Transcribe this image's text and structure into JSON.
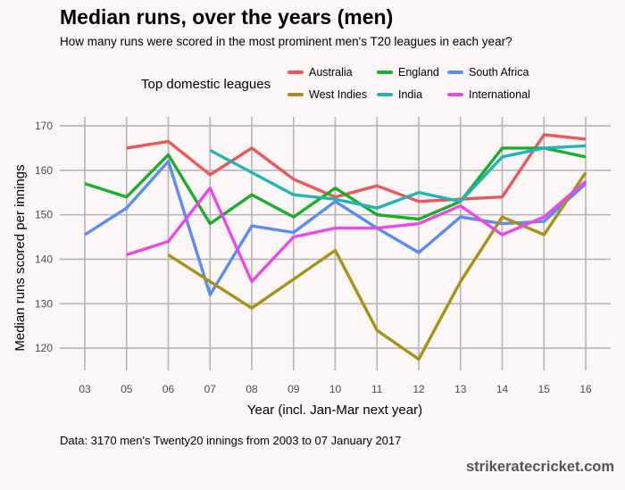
{
  "title": "Median runs, over the years (men)",
  "subtitle": "How many runs were scored in the most prominent men's T20 leagues in each year?",
  "caption": "Data: 3170 men's Twenty20 innings from 2003 to 07 January 2017",
  "brand": "strikeratecricket.com",
  "chart_data": {
    "type": "line",
    "title": "Median runs, over the years (men)",
    "xlabel": "Year (incl. Jan-Mar next year)",
    "ylabel": "Median runs scored per innings",
    "x": [
      "03",
      "05",
      "06",
      "07",
      "08",
      "09",
      "10",
      "11",
      "12",
      "13",
      "14",
      "15",
      "16"
    ],
    "ylim": [
      115,
      172
    ],
    "yticks": [
      120,
      130,
      140,
      150,
      160,
      170
    ],
    "grid": true,
    "legend": {
      "title": "Top domestic leagues",
      "position": "top"
    },
    "series": [
      {
        "name": "Australia",
        "color": "#e8585c",
        "values": [
          null,
          165,
          166.5,
          159,
          165,
          158,
          154,
          156.5,
          153,
          153.5,
          154,
          168,
          167
        ]
      },
      {
        "name": "England",
        "color": "#1cad2e",
        "values": [
          157,
          154,
          163.5,
          148,
          154.5,
          149.5,
          156,
          150,
          149,
          153,
          165,
          165,
          163
        ]
      },
      {
        "name": "South Africa",
        "color": "#5b8cf2",
        "values": [
          145.5,
          151.5,
          162,
          132,
          147.5,
          146,
          153,
          147,
          141.5,
          149.5,
          148,
          148.5,
          157
        ]
      },
      {
        "name": "West Indies",
        "color": "#a69216",
        "values": [
          null,
          null,
          141,
          135,
          129,
          135.5,
          142,
          124,
          117.5,
          135,
          149.5,
          145.5,
          159.5
        ]
      },
      {
        "name": "India",
        "color": "#22b5b5",
        "values": [
          null,
          null,
          null,
          164.5,
          159.5,
          154.5,
          153.5,
          151.5,
          155,
          153,
          163,
          165,
          165.5
        ]
      },
      {
        "name": "International",
        "color": "#e94ae6",
        "values": [
          null,
          141,
          144,
          156,
          135,
          145,
          147,
          147,
          148,
          152,
          145.5,
          149.5,
          157.5
        ]
      }
    ]
  }
}
